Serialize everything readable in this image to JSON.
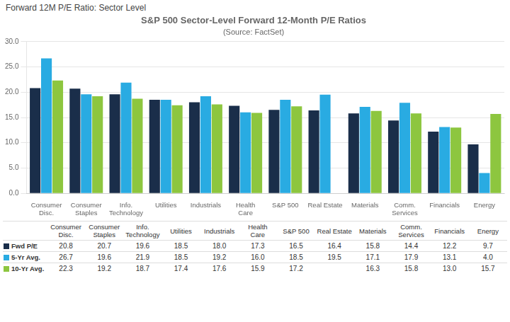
{
  "chart_data": {
    "type": "bar",
    "suptitle": "Forward 12M P/E Ratio: Sector Level",
    "title": "S&P 500 Sector-Level Forward 12-Month P/E Ratios",
    "subtitle": "(Source: FactSet)",
    "categories": [
      "Consumer\nDisc.",
      "Consumer\nStaples",
      "Info.\nTechnology",
      "Utilities",
      "Industrials",
      "Health\nCare",
      "S&P 500",
      "Real Estate",
      "Materials",
      "Comm.\nServices",
      "Financials",
      "Energy"
    ],
    "series": [
      {
        "name": "Fwd P/E",
        "color": "#1a2e4a",
        "values": [
          20.8,
          20.7,
          19.6,
          18.5,
          18.0,
          17.3,
          16.5,
          16.4,
          15.8,
          14.4,
          12.2,
          9.7
        ],
        "value_labels": [
          "20.8",
          "20.7",
          "19.6",
          "18.5",
          "18.0",
          "17.3",
          "16.5",
          "16.4",
          "15.8",
          "14.4",
          "12.2",
          "9.7"
        ]
      },
      {
        "name": "5-Yr Avg.",
        "color": "#29abe2",
        "values": [
          26.7,
          19.6,
          21.9,
          18.5,
          19.2,
          16.0,
          18.5,
          19.5,
          17.1,
          17.9,
          13.1,
          4.0
        ],
        "value_labels": [
          "26.7",
          "19.6",
          "21.9",
          "18.5",
          "19.2",
          "16.0",
          "18.5",
          "19.5",
          "17.1",
          "17.9",
          "13.1",
          "4.0"
        ]
      },
      {
        "name": "10-Yr Avg.",
        "color": "#8dc63f",
        "values": [
          22.3,
          19.2,
          18.7,
          17.4,
          17.6,
          15.9,
          17.2,
          null,
          16.3,
          15.8,
          13.0,
          15.7
        ],
        "value_labels": [
          "22.3",
          "19.2",
          "18.7",
          "17.4",
          "17.6",
          "15.9",
          "17.2",
          null,
          "16.3",
          "15.8",
          "13.0",
          "15.7"
        ]
      }
    ],
    "ylim": [
      0,
      30
    ],
    "yticks": [
      {
        "value": 0,
        "label": "0.0"
      },
      {
        "value": 5,
        "label": "5.0"
      },
      {
        "value": 10,
        "label": "10.0"
      },
      {
        "value": 15,
        "label": "15.0"
      },
      {
        "value": 20,
        "label": "20.0"
      },
      {
        "value": 25,
        "label": "25.0"
      },
      {
        "value": 30,
        "label": "30.0"
      }
    ],
    "grid": true
  }
}
